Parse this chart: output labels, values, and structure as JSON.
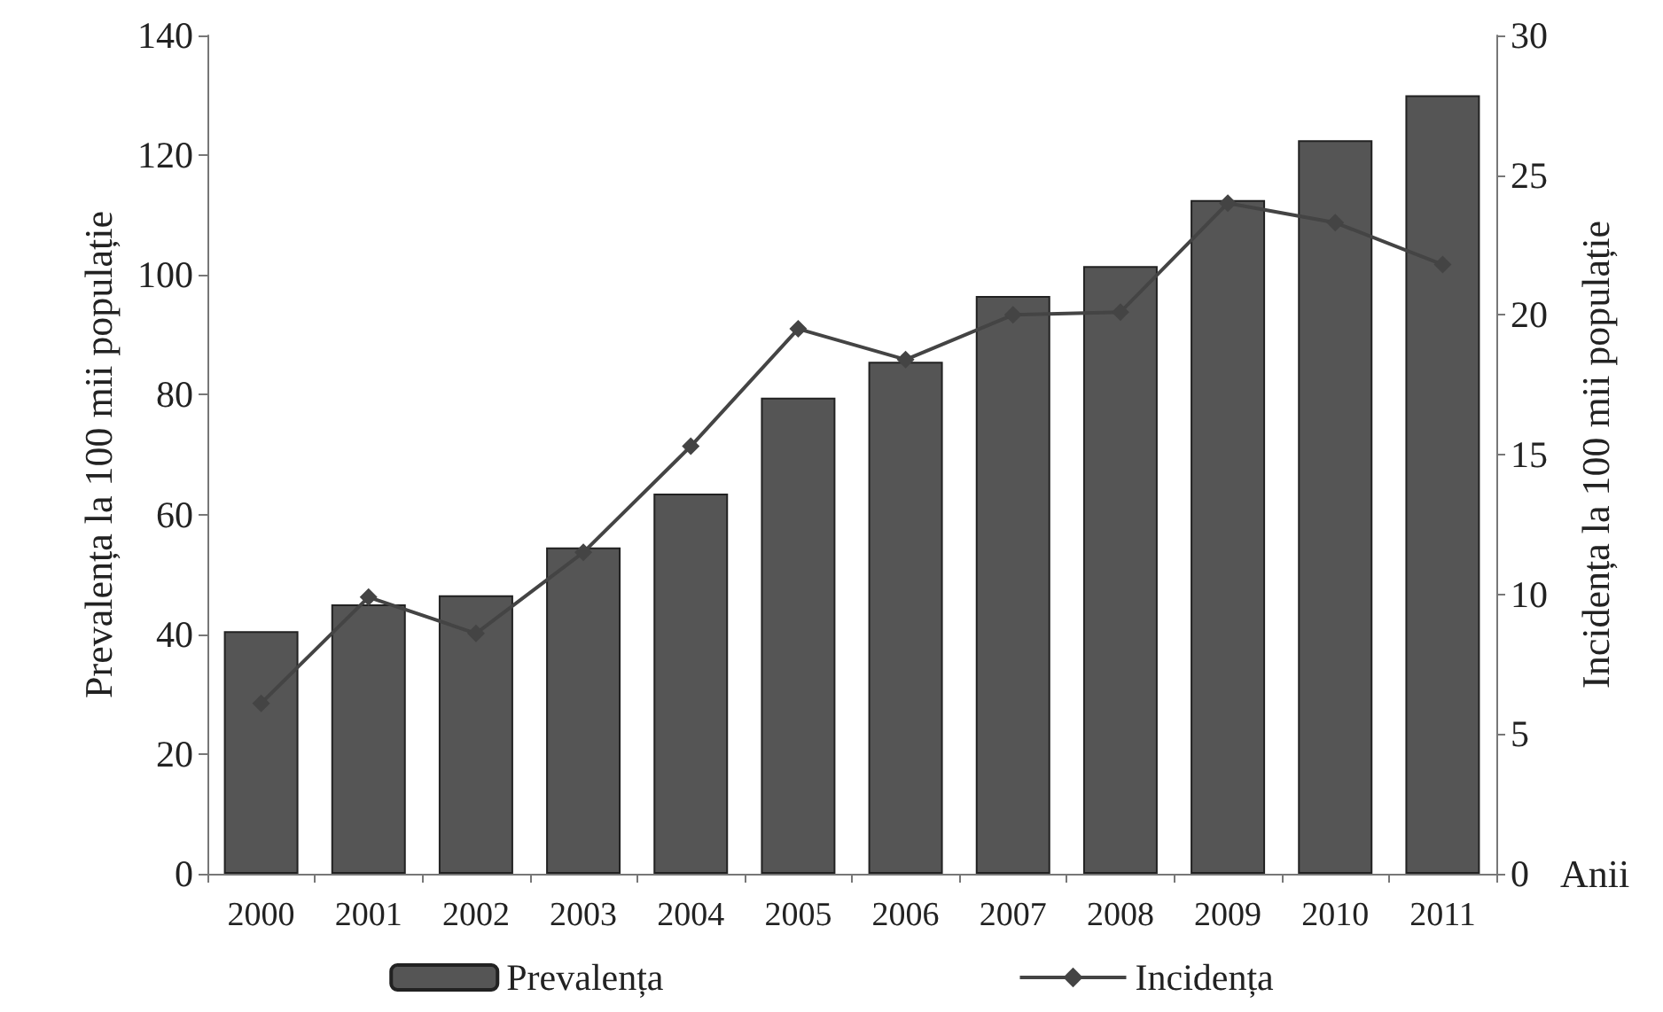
{
  "chart_data": {
    "type": "bar",
    "xlabel": "Anii",
    "ylabel": "Prevalența la 100 mii populație",
    "y2label": "Incidența la 100 mii populație",
    "categories": [
      "2000",
      "2001",
      "2002",
      "2003",
      "2004",
      "2005",
      "2006",
      "2007",
      "2008",
      "2009",
      "2010",
      "2011"
    ],
    "series": [
      {
        "name": "Prevalența",
        "color": "#555555",
        "values": [
          40.5,
          45,
          46.5,
          54.5,
          63.5,
          79.5,
          85.5,
          96.5,
          101.5,
          112.5,
          122.5,
          130
        ]
      },
      {
        "name": "Incidența",
        "type": "line",
        "axis": "y2",
        "color": "#444444",
        "marker": "diamond",
        "values": [
          6.1,
          9.9,
          8.6,
          11.5,
          15.3,
          19.5,
          18.4,
          20.0,
          20.1,
          24.0,
          23.3,
          21.8
        ]
      }
    ],
    "ylim": [
      0,
      140
    ],
    "yticks": [
      0,
      20,
      40,
      60,
      80,
      100,
      120,
      140
    ],
    "y2lim": [
      0,
      30
    ],
    "y2ticks": [
      0,
      5,
      10,
      15,
      20,
      25,
      30
    ],
    "grid": false,
    "legend": "bottom"
  }
}
